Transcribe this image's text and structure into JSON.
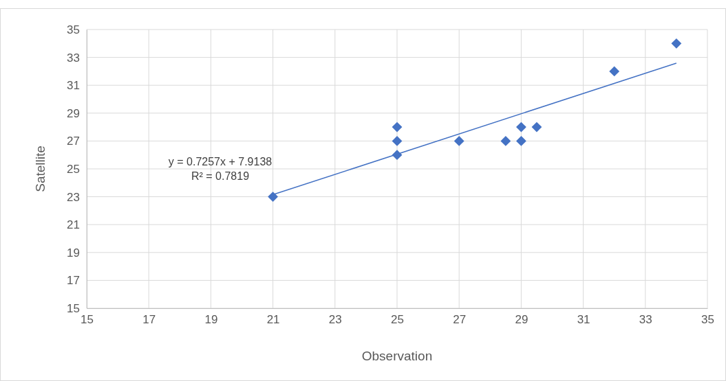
{
  "chart_data": {
    "type": "scatter",
    "xlabel": "Observation",
    "ylabel": "Satellite",
    "xlim": [
      15,
      35
    ],
    "xticks": [
      15,
      17,
      19,
      21,
      23,
      25,
      27,
      29,
      31,
      33,
      35
    ],
    "ylim": [
      15,
      35
    ],
    "yticks": [
      15,
      17,
      19,
      21,
      23,
      25,
      27,
      29,
      31,
      33,
      35
    ],
    "grid": true,
    "series": [
      {
        "marker": "diamond",
        "color": "#4472c4",
        "x": [
          21,
          25,
          25,
          25,
          27,
          28.5,
          29,
          29,
          29.5,
          32,
          34
        ],
        "values": [
          23,
          28,
          27,
          26,
          27,
          27,
          28,
          27,
          28,
          32,
          34
        ]
      },
      {
        "type": "line",
        "color": "#4472c4",
        "x": [
          21,
          34
        ],
        "values": [
          23.15,
          32.59
        ]
      }
    ],
    "annotations": [
      "y = 0.7257x + 7.9138",
      "R² = 0.7819"
    ]
  }
}
